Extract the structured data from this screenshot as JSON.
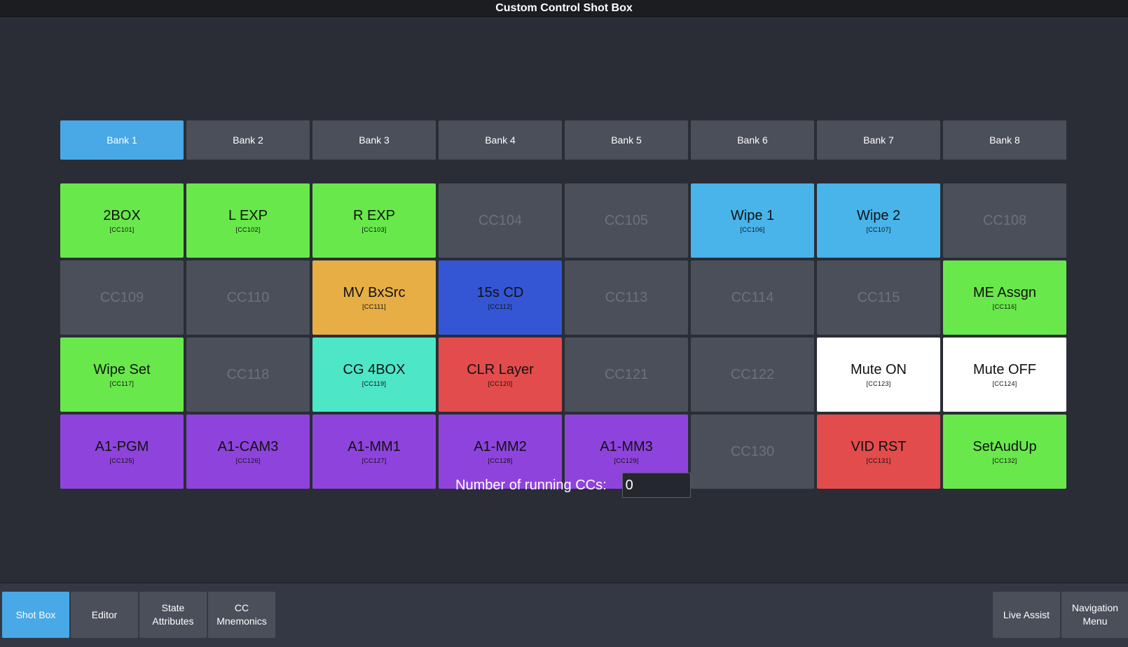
{
  "window": {
    "title": "Custom Control Shot Box"
  },
  "banks": [
    {
      "label": "Bank 1",
      "active": true
    },
    {
      "label": "Bank 2",
      "active": false
    },
    {
      "label": "Bank 3",
      "active": false
    },
    {
      "label": "Bank 4",
      "active": false
    },
    {
      "label": "Bank 5",
      "active": false
    },
    {
      "label": "Bank 6",
      "active": false
    },
    {
      "label": "Bank 7",
      "active": false
    },
    {
      "label": "Bank 8",
      "active": false
    }
  ],
  "cells": [
    {
      "name": "2BOX",
      "code": "[CC101]",
      "color": "#69e84c"
    },
    {
      "name": "L EXP",
      "code": "[CC102]",
      "color": "#69e84c"
    },
    {
      "name": "R EXP",
      "code": "[CC103]",
      "color": "#69e84c"
    },
    {
      "name": "CC104",
      "code": "",
      "color": "#4b4f5a"
    },
    {
      "name": "CC105",
      "code": "",
      "color": "#4b4f5a"
    },
    {
      "name": "Wipe 1",
      "code": "[CC106]",
      "color": "#48b4ea"
    },
    {
      "name": "Wipe 2",
      "code": "[CC107]",
      "color": "#48b4ea"
    },
    {
      "name": "CC108",
      "code": "",
      "color": "#4b4f5a"
    },
    {
      "name": "CC109",
      "code": "",
      "color": "#4b4f5a"
    },
    {
      "name": "CC110",
      "code": "",
      "color": "#4b4f5a"
    },
    {
      "name": "MV BxSrc",
      "code": "[CC111]",
      "color": "#e6ae45"
    },
    {
      "name": "15s CD",
      "code": "[CC112]",
      "color": "#3456d4"
    },
    {
      "name": "CC113",
      "code": "",
      "color": "#4b4f5a"
    },
    {
      "name": "CC114",
      "code": "",
      "color": "#4b4f5a"
    },
    {
      "name": "CC115",
      "code": "",
      "color": "#4b4f5a"
    },
    {
      "name": "ME Assgn",
      "code": "[CC116]",
      "color": "#69e84c"
    },
    {
      "name": "Wipe Set",
      "code": "[CC117]",
      "color": "#69e84c"
    },
    {
      "name": "CC118",
      "code": "",
      "color": "#4b4f5a"
    },
    {
      "name": "CG 4BOX",
      "code": "[CC119]",
      "color": "#4de6c6"
    },
    {
      "name": "CLR Layer",
      "code": "[CC120]",
      "color": "#e34c4c"
    },
    {
      "name": "CC121",
      "code": "",
      "color": "#4b4f5a"
    },
    {
      "name": "CC122",
      "code": "",
      "color": "#4b4f5a"
    },
    {
      "name": "Mute ON",
      "code": "[CC123]",
      "color": "#ffffff"
    },
    {
      "name": "Mute OFF",
      "code": "[CC124]",
      "color": "#ffffff"
    },
    {
      "name": "A1-PGM",
      "code": "[CC125]",
      "color": "#8e44dc"
    },
    {
      "name": "A1-CAM3",
      "code": "[CC126]",
      "color": "#8e44dc"
    },
    {
      "name": "A1-MM1",
      "code": "[CC127]",
      "color": "#8e44dc"
    },
    {
      "name": "A1-MM2",
      "code": "[CC128]",
      "color": "#8e44dc"
    },
    {
      "name": "A1-MM3",
      "code": "[CC129]",
      "color": "#8e44dc"
    },
    {
      "name": "CC130",
      "code": "",
      "color": "#4b4f5a"
    },
    {
      "name": "VID RST",
      "code": "[CC131]",
      "color": "#e34c4c"
    },
    {
      "name": "SetAudUp",
      "code": "[CC132]",
      "color": "#69e84c"
    }
  ],
  "running": {
    "label": "Number of running CCs:",
    "value": "0"
  },
  "footer": {
    "left": [
      {
        "label": "Shot Box",
        "active": true
      },
      {
        "label": "Editor",
        "active": false
      },
      {
        "label": "State\nAttributes",
        "active": false
      },
      {
        "label": "CC\nMnemonics",
        "active": false
      }
    ],
    "right": [
      {
        "label": "Live Assist",
        "active": false
      },
      {
        "label": "Navigation\nMenu",
        "active": false
      }
    ]
  }
}
